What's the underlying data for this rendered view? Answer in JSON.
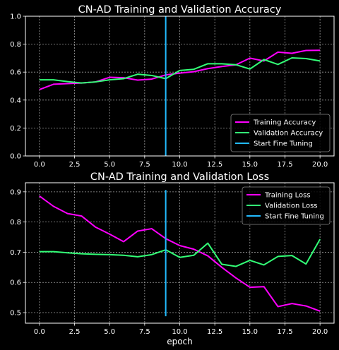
{
  "chart_data": [
    {
      "type": "line",
      "title": "CN-AD  Training and Validation Accuracy",
      "xlabel": "",
      "ylabel": "",
      "xlim": [
        -1,
        21
      ],
      "ylim": [
        0,
        1.0
      ],
      "xticks": [
        0.0,
        2.5,
        5.0,
        7.5,
        10.0,
        12.5,
        15.0,
        17.5,
        20.0
      ],
      "xtick_labels": [
        "0.0",
        "2.5",
        "5.0",
        "7.5",
        "10.0",
        "12.5",
        "15.0",
        "17.5",
        "20.0"
      ],
      "yticks": [
        0.0,
        0.2,
        0.4,
        0.6,
        0.8,
        1.0
      ],
      "ytick_labels": [
        "0.0",
        "0.2",
        "0.4",
        "0.6",
        "0.8",
        "1.0"
      ],
      "grid": true,
      "legend_position": "lower-right",
      "x": [
        0,
        1,
        2,
        3,
        4,
        5,
        6,
        7,
        8,
        9,
        10,
        11,
        12,
        13,
        14,
        15,
        16,
        17,
        18,
        19,
        20
      ],
      "series": [
        {
          "name": "Training Accuracy",
          "color": "#ff00ff",
          "values": [
            0.475,
            0.513,
            0.518,
            0.522,
            0.53,
            0.563,
            0.56,
            0.543,
            0.55,
            0.58,
            0.593,
            0.603,
            0.625,
            0.64,
            0.652,
            0.7,
            0.68,
            0.743,
            0.735,
            0.755,
            0.756
          ]
        },
        {
          "name": "Validation Accuracy",
          "color": "#33ff77",
          "values": [
            0.545,
            0.545,
            0.532,
            0.522,
            0.53,
            0.545,
            0.553,
            0.585,
            0.576,
            0.553,
            0.612,
            0.62,
            0.66,
            0.66,
            0.653,
            0.622,
            0.69,
            0.655,
            0.702,
            0.697,
            0.68
          ]
        }
      ],
      "vline": {
        "name": "Start Fine Tuning",
        "color": "#22bbff",
        "x": 9,
        "y": [
          0,
          1.0
        ]
      }
    },
    {
      "type": "line",
      "title": "CN-AD  Training and Validation Loss",
      "xlabel": "epoch",
      "ylabel": "",
      "xlim": [
        -1,
        21
      ],
      "ylim": [
        0.465,
        0.93
      ],
      "xticks": [
        0.0,
        2.5,
        5.0,
        7.5,
        10.0,
        12.5,
        15.0,
        17.5,
        20.0
      ],
      "xtick_labels": [
        "0.0",
        "2.5",
        "5.0",
        "7.5",
        "10.0",
        "12.5",
        "15.0",
        "17.5",
        "20.0"
      ],
      "yticks": [
        0.5,
        0.6,
        0.7,
        0.8,
        0.9
      ],
      "ytick_labels": [
        "0.5",
        "0.6",
        "0.7",
        "0.8",
        "0.9"
      ],
      "grid": true,
      "legend_position": "upper-right",
      "x": [
        0,
        1,
        2,
        3,
        4,
        5,
        6,
        7,
        8,
        9,
        10,
        11,
        12,
        13,
        14,
        15,
        16,
        17,
        18,
        19,
        20
      ],
      "series": [
        {
          "name": "Training Loss",
          "color": "#ff00ff",
          "values": [
            0.886,
            0.852,
            0.828,
            0.82,
            0.783,
            0.76,
            0.735,
            0.77,
            0.778,
            0.745,
            0.722,
            0.71,
            0.688,
            0.65,
            0.615,
            0.584,
            0.586,
            0.52,
            0.53,
            0.522,
            0.505
          ]
        },
        {
          "name": "Validation Loss",
          "color": "#33ff77",
          "values": [
            0.702,
            0.702,
            0.698,
            0.695,
            0.693,
            0.692,
            0.69,
            0.685,
            0.692,
            0.708,
            0.683,
            0.69,
            0.73,
            0.66,
            0.653,
            0.673,
            0.658,
            0.686,
            0.689,
            0.661,
            0.743
          ]
        }
      ],
      "vline": {
        "name": "Start Fine Tuning",
        "color": "#22bbff",
        "x": 9,
        "y": [
          0.488,
          0.906
        ]
      }
    }
  ]
}
